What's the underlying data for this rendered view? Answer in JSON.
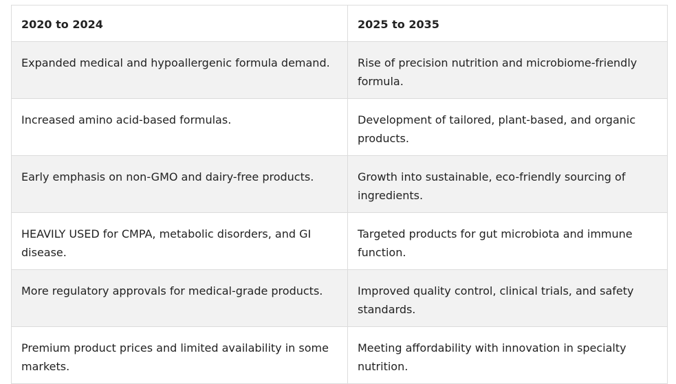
{
  "table": {
    "headers": [
      "2020 to 2024",
      "2025 to 2035"
    ],
    "rows": [
      [
        "Expanded medical and hypoallergenic formula demand.",
        "Rise of precision nutrition and microbiome-friendly formula."
      ],
      [
        "Increased amino acid-based formulas.",
        "Development of tailored, plant-based, and organic products."
      ],
      [
        "Early emphasis on non-GMO and dairy-free products.",
        "Growth into sustainable, eco-friendly sourcing of ingredients."
      ],
      [
        "HEAVILY USED for CMPA, metabolic disorders, and GI disease.",
        "Targeted products for gut microbiota and immune function."
      ],
      [
        "More regulatory approvals for medical-grade products.",
        "Improved quality control, clinical trials, and safety standards."
      ],
      [
        "Premium product prices and limited availability in some markets.",
        "Meeting affordability with innovation in specialty nutrition."
      ]
    ]
  }
}
